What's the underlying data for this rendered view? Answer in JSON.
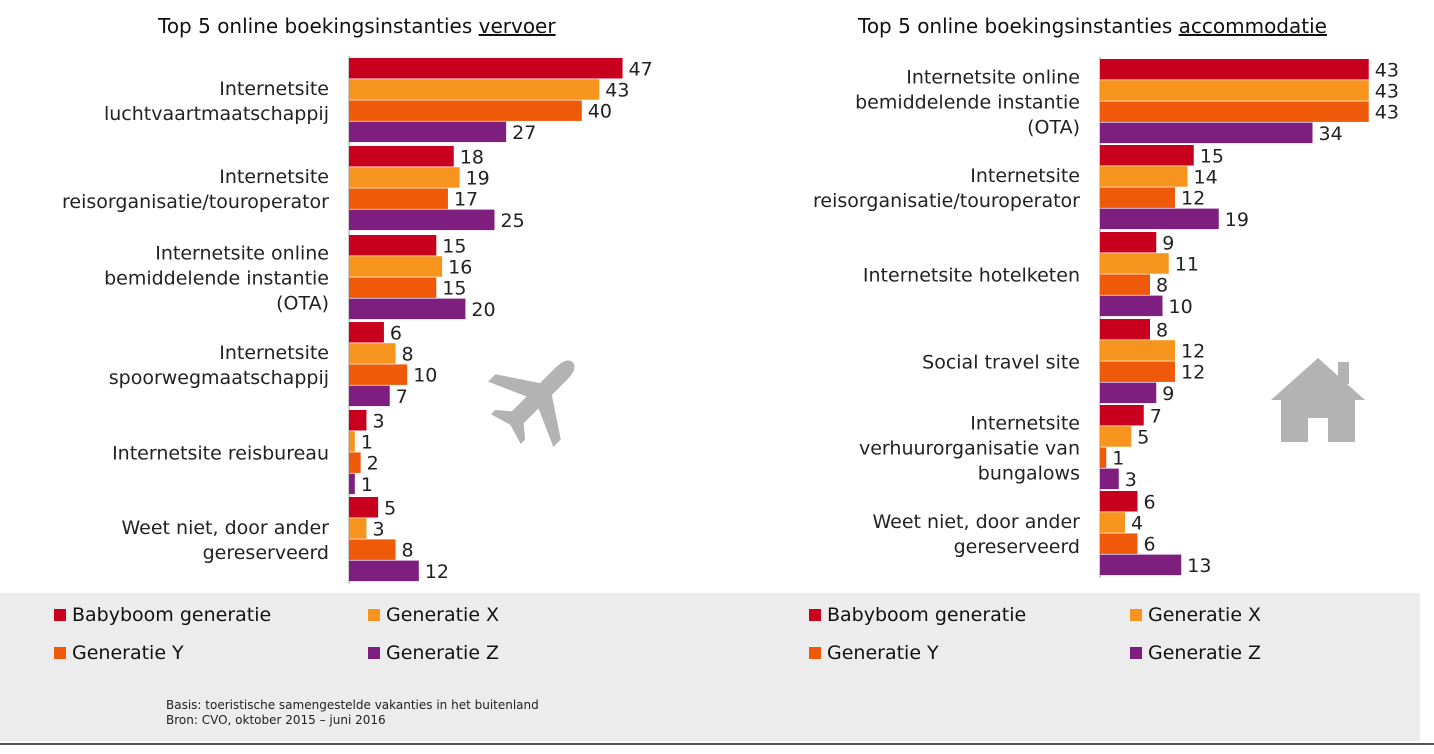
{
  "series": [
    {
      "name": "Babyboom generatie",
      "color": "#c8001e"
    },
    {
      "name": "Generatie X",
      "color": "#f7941d"
    },
    {
      "name": "Generatie Y",
      "color": "#ee5a0a"
    },
    {
      "name": "Generatie Z",
      "color": "#7e1e7e"
    }
  ],
  "chart_data": [
    {
      "type": "bar",
      "orientation": "horizontal",
      "title_prefix": "Top 5 online boekingsinstanties ",
      "title_underlined": "vervoer",
      "icon": "airplane-icon",
      "categories": [
        "Internetsite luchtvaartmaatschappij",
        "Internetsite reisorganisatie/touroperator",
        "Internetsite online bemiddelende instantie (OTA)",
        "Internetsite spoorwegmaatschappij",
        "Internetsite reisbureau",
        "Weet niet, door ander gereserveerd"
      ],
      "category_lines": [
        [
          "Internetsite",
          "luchtvaartmaatschappij"
        ],
        [
          "Internetsite",
          "reisorganisatie/touroperator"
        ],
        [
          "Internetsite online",
          "bemiddelende instantie",
          "(OTA)"
        ],
        [
          "Internetsite",
          "spoorwegmaatschappij"
        ],
        [
          "Internetsite reisbureau"
        ],
        [
          "Weet niet, door ander",
          "gereserveerd"
        ]
      ],
      "series": [
        {
          "name": "Babyboom generatie",
          "values": [
            47,
            18,
            15,
            6,
            3,
            5
          ]
        },
        {
          "name": "Generatie X",
          "values": [
            43,
            19,
            16,
            8,
            1,
            3
          ]
        },
        {
          "name": "Generatie Y",
          "values": [
            40,
            17,
            15,
            10,
            2,
            8
          ]
        },
        {
          "name": "Generatie Z",
          "values": [
            27,
            25,
            20,
            7,
            1,
            12
          ]
        }
      ]
    },
    {
      "type": "bar",
      "orientation": "horizontal",
      "title_prefix": "Top 5 online boekingsinstanties ",
      "title_underlined": "accommodatie",
      "icon": "house-icon",
      "categories": [
        "Internetsite online bemiddelende instantie (OTA)",
        "Internetsite reisorganisatie/touroperator",
        "Internetsite hotelketen",
        "Social travel site",
        "Internetsite verhuurorganisatie van bungalows",
        "Weet niet, door ander gereserveerd"
      ],
      "category_lines": [
        [
          "Internetsite online",
          "bemiddelende instantie",
          "(OTA)"
        ],
        [
          "Internetsite",
          "reisorganisatie/touroperator"
        ],
        [
          "Internetsite hotelketen"
        ],
        [
          "Social travel site"
        ],
        [
          "Internetsite",
          "verhuurorganisatie van",
          "bungalows"
        ],
        [
          "Weet niet, door ander",
          "gereserveerd"
        ]
      ],
      "series": [
        {
          "name": "Babyboom generatie",
          "values": [
            43,
            15,
            9,
            8,
            7,
            6
          ]
        },
        {
          "name": "Generatie X",
          "values": [
            43,
            14,
            11,
            12,
            5,
            4
          ]
        },
        {
          "name": "Generatie Y",
          "values": [
            43,
            12,
            8,
            12,
            1,
            6
          ]
        },
        {
          "name": "Generatie Z",
          "values": [
            34,
            19,
            10,
            9,
            3,
            13
          ]
        }
      ]
    }
  ],
  "source": {
    "line1": "Basis: toeristische samengestelde vakanties in het buitenland",
    "line2": "Bron: CVO, oktober 2015 – juni 2016"
  }
}
